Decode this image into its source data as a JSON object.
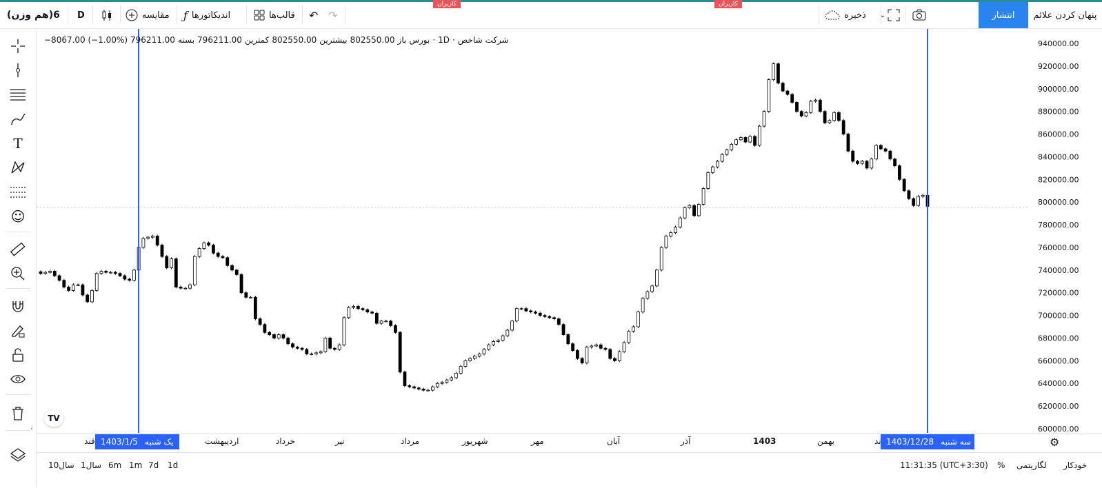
{
  "topbar": {
    "symbol": "(هم وزن)6",
    "interval": "D",
    "compare_label": "مقایسه",
    "indicators_label": "اندیکاتورها",
    "templates_label": "قالب‌ها",
    "save_label": "ذخیره",
    "publish_label": "انتشار",
    "hide_marks_label": "پنهان کردن علائم",
    "promo_text": "کاربران"
  },
  "legend": {
    "name": "شرکت شاخص",
    "interval": "1D",
    "exchange": "بورس",
    "open_label": "باز",
    "open": "802550.00",
    "high_label": "بیشترین",
    "high": "802550.00",
    "low_label": "کمترین",
    "low": "796211.00",
    "close_label": "بسته",
    "close": "796211.00",
    "change": "−8067.00 (−1.00%)"
  },
  "price_axis": [
    "940000.00",
    "920000.00",
    "900000.00",
    "880000.00",
    "860000.00",
    "840000.00",
    "820000.00",
    "800000.00",
    "780000.00",
    "760000.00",
    "740000.00",
    "720000.00",
    "700000.00",
    "680000.00",
    "660000.00",
    "640000.00",
    "620000.00",
    "600000.00"
  ],
  "time_axis": {
    "labels": [
      "قند",
      "اردیبهشت",
      "خرداد",
      "تیر",
      "مرداد",
      "شهریور",
      "مهر",
      "آبان",
      "آذر",
      "1403",
      "بهمن",
      "ند"
    ],
    "start_tag": {
      "date": "1403/1/5",
      "day": "یک شنبه"
    },
    "end_tag": {
      "date": "1403/12/28",
      "day": "سه شنبه"
    }
  },
  "bottombar": {
    "ranges": [
      "10سال",
      "1سال",
      "6m",
      "1m",
      "7d",
      "1d"
    ],
    "clock": "11:31:35 (UTC+3:30)",
    "log_label": "لگاریتمی",
    "percent_label": "%",
    "auto_label": "خودکار"
  },
  "colors": {
    "accent": "#2a84f0",
    "selection": "#2962ff",
    "candle": "#000000"
  },
  "chart_data": {
    "type": "candlestick",
    "title": "",
    "ylim": [
      600000,
      940000
    ],
    "closes": [
      737000,
      738000,
      739000,
      735000,
      731000,
      725000,
      722000,
      727000,
      727000,
      718000,
      712000,
      722000,
      737000,
      739000,
      738000,
      738000,
      737000,
      735000,
      732000,
      731000,
      740000,
      760000,
      768000,
      769000,
      770000,
      762000,
      752000,
      742000,
      750000,
      725000,
      724000,
      724000,
      727000,
      752000,
      759000,
      764000,
      762000,
      755000,
      752000,
      751000,
      744000,
      740000,
      736000,
      720000,
      716000,
      716000,
      697000,
      692000,
      685000,
      683000,
      680000,
      683000,
      680000,
      675000,
      672000,
      671000,
      670000,
      666000,
      666000,
      667000,
      668000,
      680000,
      671000,
      670000,
      674000,
      698000,
      707000,
      708000,
      706000,
      705000,
      703000,
      702000,
      693000,
      695000,
      695000,
      691000,
      685000,
      650000,
      638000,
      637000,
      636000,
      635000,
      634000,
      634000,
      637000,
      640000,
      641000,
      643000,
      645000,
      649000,
      655000,
      660000,
      662000,
      664000,
      666000,
      670000,
      674000,
      677000,
      678000,
      682000,
      687000,
      695000,
      706000,
      706000,
      704000,
      703000,
      702000,
      700000,
      699000,
      698000,
      697000,
      692000,
      683000,
      675000,
      669000,
      662000,
      658000,
      672000,
      673000,
      674000,
      671000,
      670000,
      662000,
      660000,
      668000,
      676000,
      686000,
      690000,
      703000,
      715000,
      721000,
      726000,
      740000,
      760000,
      770000,
      773000,
      778000,
      786000,
      795000,
      797000,
      788000,
      798000,
      812000,
      826000,
      831000,
      836000,
      842000,
      846000,
      851000,
      855000,
      857000,
      853000,
      858000,
      850000,
      867000,
      880000,
      908000,
      922000,
      905000,
      898000,
      895000,
      888000,
      880000,
      876000,
      879000,
      889000,
      890000,
      880000,
      870000,
      872000,
      879000,
      872000,
      860000,
      845000,
      836000,
      834000,
      836000,
      830000,
      838000,
      850000,
      847000,
      845000,
      838000,
      832000,
      820000,
      810000,
      803000,
      797000,
      805000,
      806000,
      796211
    ]
  }
}
